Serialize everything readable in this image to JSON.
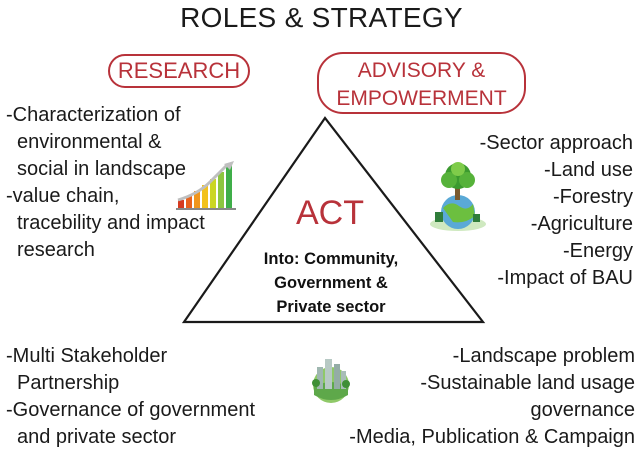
{
  "title": "ROLES & STRATEGY",
  "research": {
    "label": "RESEARCH",
    "items": [
      "-Characterization of",
      "environmental &",
      "social in landscape",
      "-value chain,",
      "tracebility and impact",
      "research"
    ]
  },
  "advisory": {
    "label_line1": "ADVISORY &",
    "label_line2": "EMPOWERMENT",
    "items": [
      "-Sector approach",
      "-Land use",
      "-Forestry",
      "-Agriculture",
      "-Energy",
      "-Impact of BAU"
    ]
  },
  "center": {
    "act": "ACT",
    "into_line1": "Into: Community,",
    "into_line2": "Government &",
    "into_line3": "Private sector"
  },
  "bottom_left": [
    "-Multi Stakeholder",
    "Partnership",
    "-Governance of government",
    "and private sector"
  ],
  "bottom_right": [
    "-Landscape problem",
    "-Sustainable land usage",
    "governance",
    "-Media, Publication & Campaign"
  ],
  "icons": {
    "chart": "bar-chart-growth-icon",
    "globe": "green-globe-tree-icon",
    "city": "green-city-globe-icon"
  },
  "colors": {
    "accent": "#b8323a",
    "text": "#1a1a1a"
  }
}
